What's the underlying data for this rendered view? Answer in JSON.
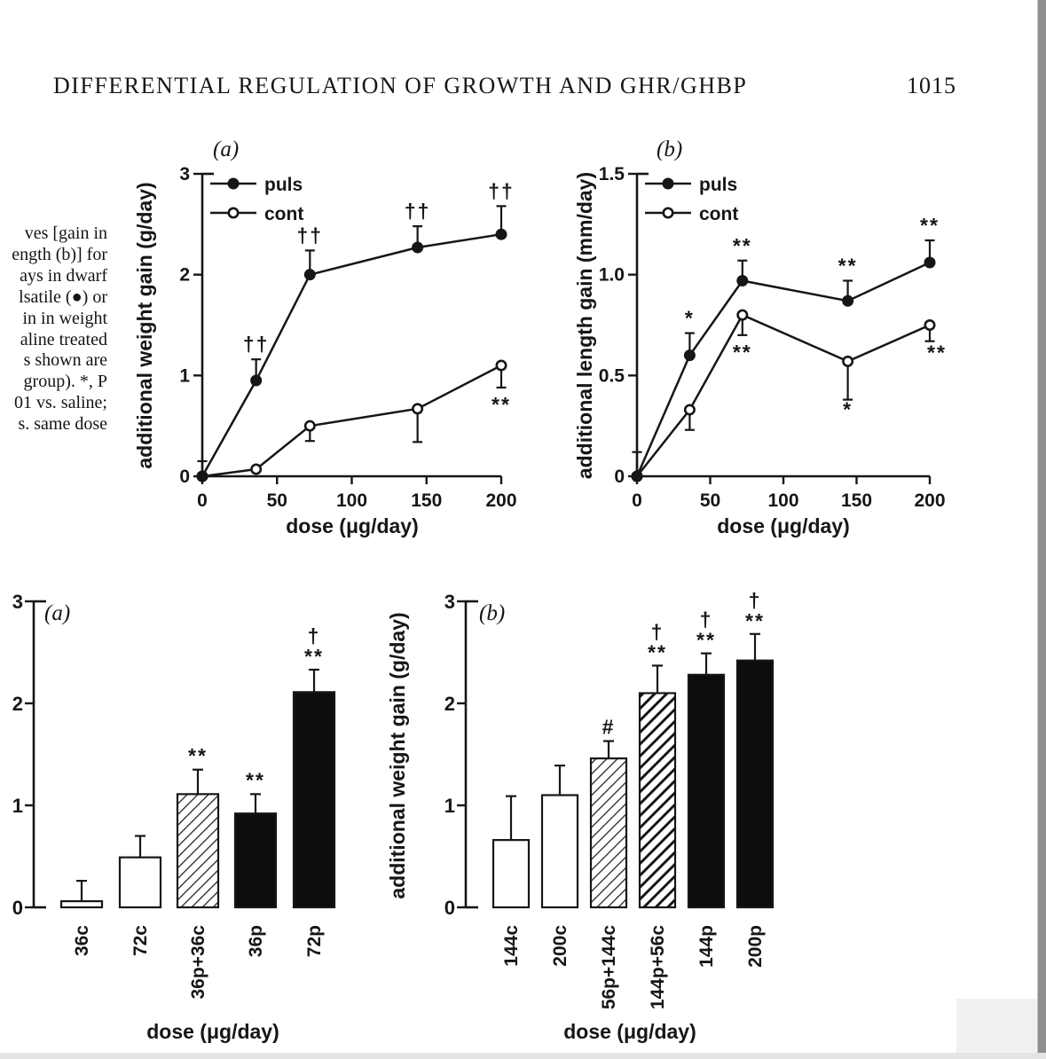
{
  "page": {
    "header": {
      "title": "DIFFERENTIAL REGULATION OF GROWTH AND GHR/GHBP",
      "page_number": "1015"
    },
    "caption_fragment": {
      "lines": [
        "ves [gain in",
        "ength (b)] for",
        "ays in dwarf",
        "lsatile (●) or",
        "in in weight",
        "aline treated",
        "s shown are",
        "group). *, P",
        "01 vs. saline;",
        "s. same dose"
      ]
    }
  },
  "chart_data": [
    {
      "id": "line-a",
      "type": "line",
      "panel_label": "(a)",
      "xlabel": "dose (μg/day)",
      "ylabel": "additional weight gain (g/day)",
      "xlim": [
        0,
        200
      ],
      "ylim": [
        0,
        3
      ],
      "xticks": [
        {
          "v": 0,
          "label": "0"
        },
        {
          "v": 50,
          "label": "50"
        },
        {
          "v": 100,
          "label": "100"
        },
        {
          "v": 150,
          "label": "150"
        },
        {
          "v": 200,
          "label": "200"
        }
      ],
      "yticks": [
        {
          "v": 0,
          "label": "0"
        },
        {
          "v": 1,
          "label": "1"
        },
        {
          "v": 2,
          "label": "2"
        },
        {
          "v": 3,
          "label": "3"
        }
      ],
      "legend": [
        {
          "label": "puls",
          "marker": "filled"
        },
        {
          "label": "cont",
          "marker": "open"
        }
      ],
      "series": [
        {
          "name": "puls",
          "marker": "filled",
          "points": [
            {
              "x": 0,
              "y": 0
            },
            {
              "x": 36,
              "y": 0.95,
              "err": 0.21,
              "err_dir": "up",
              "sig": "††",
              "sig_pos": "above"
            },
            {
              "x": 72,
              "y": 2.0,
              "err": 0.24,
              "err_dir": "up",
              "sig": "††",
              "sig_pos": "above"
            },
            {
              "x": 144,
              "y": 2.27,
              "err": 0.21,
              "err_dir": "up",
              "sig": "††",
              "sig_pos": "above"
            },
            {
              "x": 200,
              "y": 2.4,
              "err": 0.28,
              "err_dir": "up",
              "sig": "††",
              "sig_pos": "above"
            }
          ]
        },
        {
          "name": "cont",
          "marker": "open",
          "points": [
            {
              "x": 0,
              "y": 0,
              "err": 0.15,
              "err_dir": "up"
            },
            {
              "x": 36,
              "y": 0.07
            },
            {
              "x": 72,
              "y": 0.5,
              "err": 0.15,
              "err_dir": "down"
            },
            {
              "x": 144,
              "y": 0.67,
              "err": 0.33,
              "err_dir": "down"
            },
            {
              "x": 200,
              "y": 1.1,
              "err": 0.22,
              "err_dir": "down",
              "sig": "**",
              "sig_pos": "below"
            }
          ]
        }
      ]
    },
    {
      "id": "line-b",
      "type": "line",
      "panel_label": "(b)",
      "xlabel": "dose (μg/day)",
      "ylabel": "additional length gain (mm/day)",
      "xlim": [
        0,
        200
      ],
      "ylim": [
        0,
        1.5
      ],
      "xticks": [
        {
          "v": 0,
          "label": "0"
        },
        {
          "v": 50,
          "label": "50"
        },
        {
          "v": 100,
          "label": "100"
        },
        {
          "v": 150,
          "label": "150"
        },
        {
          "v": 200,
          "label": "200"
        }
      ],
      "yticks": [
        {
          "v": 0,
          "label": "0"
        },
        {
          "v": 0.5,
          "label": "0.5"
        },
        {
          "v": 1.0,
          "label": "1.0"
        },
        {
          "v": 1.5,
          "label": "1.5"
        }
      ],
      "legend": [
        {
          "label": "puls",
          "marker": "filled"
        },
        {
          "label": "cont",
          "marker": "open"
        }
      ],
      "series": [
        {
          "name": "puls",
          "marker": "filled",
          "points": [
            {
              "x": 0,
              "y": 0
            },
            {
              "x": 36,
              "y": 0.6,
              "err": 0.11,
              "err_dir": "up",
              "sig": "*",
              "sig_pos": "above"
            },
            {
              "x": 72,
              "y": 0.97,
              "err": 0.1,
              "err_dir": "up",
              "sig": "**",
              "sig_pos": "above"
            },
            {
              "x": 144,
              "y": 0.87,
              "err": 0.1,
              "err_dir": "up",
              "sig": "**",
              "sig_pos": "above"
            },
            {
              "x": 200,
              "y": 1.06,
              "err": 0.11,
              "err_dir": "up",
              "sig": "**",
              "sig_pos": "above"
            }
          ]
        },
        {
          "name": "cont",
          "marker": "open",
          "points": [
            {
              "x": 0,
              "y": 0,
              "err": 0.12,
              "err_dir": "up"
            },
            {
              "x": 36,
              "y": 0.33,
              "err": 0.1,
              "err_dir": "down"
            },
            {
              "x": 72,
              "y": 0.8,
              "err": 0.1,
              "err_dir": "down",
              "sig": "**",
              "sig_pos": "below"
            },
            {
              "x": 144,
              "y": 0.57,
              "err": 0.19,
              "err_dir": "down",
              "sig": "*",
              "sig_pos": "below"
            },
            {
              "x": 200,
              "y": 0.75,
              "err": 0.08,
              "err_dir": "down",
              "sig": "**",
              "sig_pos": "below"
            }
          ]
        }
      ]
    },
    {
      "id": "bar-a",
      "type": "bar",
      "panel_label": "(a)",
      "xlabel": "dose (μg/day)",
      "ylabel": "",
      "ylim": [
        0,
        3
      ],
      "yticks": [
        {
          "v": 0,
          "label": "0"
        },
        {
          "v": 1,
          "label": "1"
        },
        {
          "v": 2,
          "label": "2"
        },
        {
          "v": 3,
          "label": "3"
        }
      ],
      "bars": [
        {
          "label": "36c",
          "value": 0.06,
          "err": 0.2,
          "style": "white",
          "sig": []
        },
        {
          "label": "72c",
          "value": 0.49,
          "err": 0.21,
          "style": "white",
          "sig": []
        },
        {
          "label": "36p+36c",
          "value": 1.11,
          "err": 0.24,
          "style": "hatch",
          "sig": [
            "**"
          ]
        },
        {
          "label": "36p",
          "value": 0.92,
          "err": 0.19,
          "style": "black",
          "sig": [
            "**"
          ]
        },
        {
          "label": "72p",
          "value": 2.11,
          "err": 0.22,
          "style": "black",
          "sig": [
            "†",
            "**"
          ]
        }
      ]
    },
    {
      "id": "bar-b",
      "type": "bar",
      "panel_label": "(b)",
      "xlabel": "dose (μg/day)",
      "ylabel": "additional weight gain (g/day)",
      "ylim": [
        0,
        3
      ],
      "yticks": [
        {
          "v": 0,
          "label": "0"
        },
        {
          "v": 1,
          "label": "1"
        },
        {
          "v": 2,
          "label": "2"
        },
        {
          "v": 3,
          "label": "3"
        }
      ],
      "bars": [
        {
          "label": "144c",
          "value": 0.66,
          "err": 0.43,
          "style": "white",
          "sig": []
        },
        {
          "label": "200c",
          "value": 1.1,
          "err": 0.29,
          "style": "white",
          "sig": []
        },
        {
          "label": "56p+144c",
          "value": 1.46,
          "err": 0.17,
          "style": "hatch",
          "sig": [
            "#"
          ]
        },
        {
          "label": "144p+56c",
          "value": 2.1,
          "err": 0.27,
          "style": "hatch-heavy",
          "sig": [
            "†",
            "**"
          ]
        },
        {
          "label": "144p",
          "value": 2.28,
          "err": 0.21,
          "style": "black",
          "sig": [
            "†",
            "**"
          ]
        },
        {
          "label": "200p",
          "value": 2.42,
          "err": 0.26,
          "style": "black",
          "sig": [
            "†",
            "**"
          ]
        }
      ]
    }
  ]
}
